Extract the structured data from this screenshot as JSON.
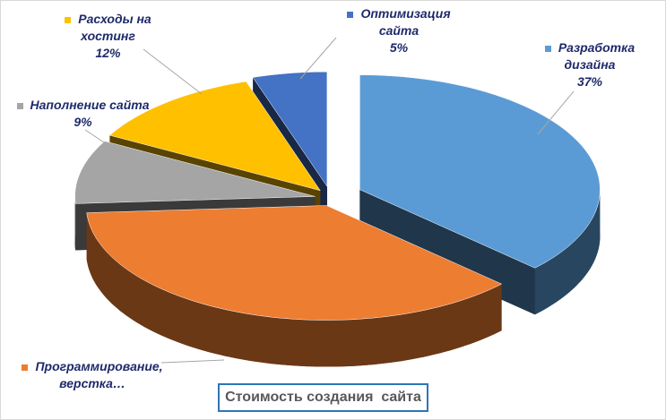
{
  "chart_data": {
    "type": "pie",
    "title": "Стоимость создания  сайта",
    "categories": [
      "Разработка дизайна",
      "Программирование, верстка…",
      "Наполнение сайта",
      "Расходы на хостинг",
      "Оптимизация сайта"
    ],
    "values": [
      37,
      37,
      9,
      12,
      5
    ],
    "value_labels": [
      "37%",
      null,
      "9%",
      "12%",
      "5%"
    ],
    "colors": [
      "#5b9bd5",
      "#ed7d31",
      "#a5a5a5",
      "#ffc000",
      "#4472c4"
    ]
  }
}
